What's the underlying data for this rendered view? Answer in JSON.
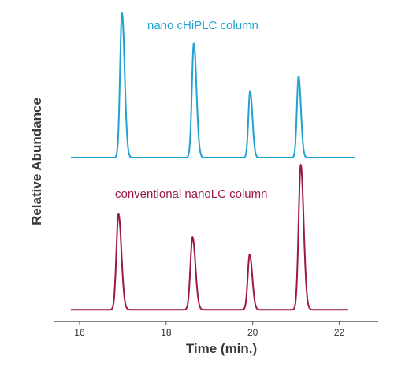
{
  "chart_data": {
    "type": "line",
    "xlabel": "Time (min.)",
    "ylabel": "Relative Abundance",
    "xlim": [
      15.4,
      22.9
    ],
    "x_ticks": [
      16,
      18,
      20,
      22
    ],
    "x_tick_labels": [
      "16",
      "18",
      "20",
      "22"
    ],
    "y_ticks": [],
    "grid": false,
    "legend": "none",
    "y_axis_line": false,
    "x_start": 15.8,
    "series": [
      {
        "name": "nano cHiPLC column",
        "color": "#1fa2cf",
        "baseline": 0,
        "x_end": 22.35,
        "peaks": [
          {
            "rt": 16.98,
            "height": 1.0,
            "width": 0.045
          },
          {
            "rt": 18.64,
            "height": 0.79,
            "width": 0.045
          },
          {
            "rt": 19.94,
            "height": 0.46,
            "width": 0.04
          },
          {
            "rt": 21.06,
            "height": 0.56,
            "width": 0.04
          }
        ]
      },
      {
        "name": "conventional nanoLC column",
        "color": "#9b1944",
        "baseline": -1.05,
        "x_end": 22.2,
        "peaks": [
          {
            "rt": 16.9,
            "height": 0.66,
            "width": 0.05
          },
          {
            "rt": 18.61,
            "height": 0.5,
            "width": 0.05
          },
          {
            "rt": 19.93,
            "height": 0.38,
            "width": 0.045
          },
          {
            "rt": 21.11,
            "height": 1.0,
            "width": 0.05
          }
        ]
      }
    ]
  }
}
